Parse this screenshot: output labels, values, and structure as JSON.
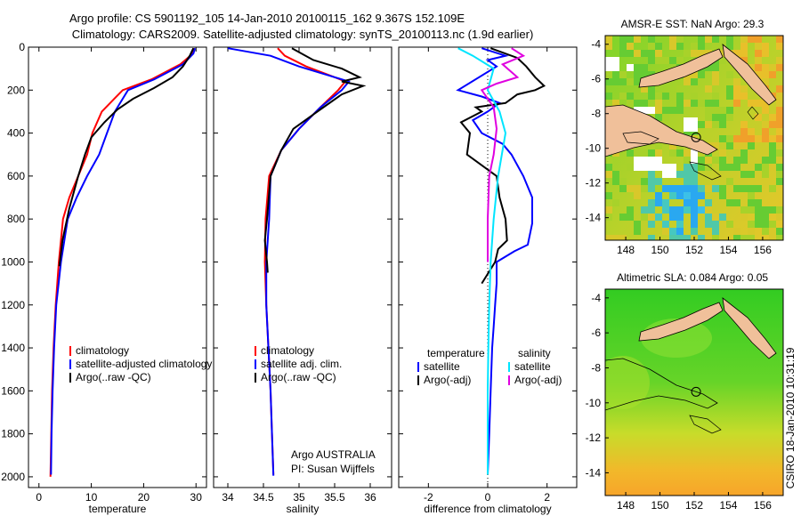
{
  "header": {
    "title_line1": "Argo profile: CS 5901192_105 14-Jan-2010 20100115_162 9.367S 152.109E",
    "title_line2": "Climatology: CARS2009. Satellite-adjusted climatology: synTS_20100113.nc (1.9d earlier)"
  },
  "credit": "CSIRO 18-Jan-2010 10:31:19",
  "colors": {
    "red": "#ff0000",
    "blue": "#0000ff",
    "black": "#000000",
    "cyan": "#00e5ff",
    "magenta": "#e000e0",
    "land": "#f0c09a"
  },
  "chart_data": [
    {
      "type": "line",
      "xlabel": "temperature",
      "ylabel": "",
      "xlim": [
        -2,
        32
      ],
      "ylim": [
        2050,
        0
      ],
      "xticks": [
        "0",
        "10",
        "20",
        "30"
      ],
      "yticks": [
        "0",
        "200",
        "400",
        "600",
        "800",
        "1000",
        "1200",
        "1400",
        "1600",
        "1800",
        "2000"
      ],
      "legend": [
        "climatology",
        "satellite-adjusted climatology",
        "Argo(..raw -QC)"
      ],
      "series": [
        {
          "name": "climatology",
          "color": "#ff0000",
          "x": [
            29.6,
            29.4,
            27,
            21.5,
            16,
            12,
            10.2,
            9.2,
            7.5,
            5.8,
            4.6,
            3.8,
            3.2,
            2.8,
            2.5,
            2.35,
            2.2
          ],
          "y": [
            5,
            30,
            80,
            150,
            200,
            300,
            400,
            500,
            600,
            700,
            800,
            1000,
            1200,
            1400,
            1600,
            1800,
            2000
          ]
        },
        {
          "name": "satellite-adjusted climatology",
          "color": "#0000ff",
          "x": [
            29.8,
            29.5,
            27.5,
            22,
            17,
            14.5,
            13,
            11.5,
            9.2,
            7.2,
            5.5,
            4.2,
            3.3,
            2.9,
            2.6,
            2.4,
            2.3
          ],
          "y": [
            5,
            30,
            80,
            150,
            200,
            300,
            400,
            500,
            600,
            700,
            800,
            1000,
            1200,
            1400,
            1600,
            1800,
            1990
          ]
        },
        {
          "name": "Argo(..raw -QC)",
          "color": "#000000",
          "x": [
            29.5,
            28.8,
            27.5,
            25.5,
            22,
            18,
            15,
            12.5,
            10,
            8.8,
            7.5,
            5.8,
            4.5,
            3.9
          ],
          "y": [
            5,
            40,
            90,
            140,
            190,
            240,
            290,
            350,
            420,
            500,
            600,
            750,
            900,
            1020
          ]
        }
      ]
    },
    {
      "type": "line",
      "xlabel": "salinity",
      "ylabel": "",
      "xlim": [
        33.8,
        36.3
      ],
      "ylim": [
        2050,
        0
      ],
      "xticks": [
        "34",
        "34.5",
        "35",
        "35.5",
        "36"
      ],
      "legend": [
        "climatology",
        "satellite adj. clim.",
        "Argo(..raw -QC)"
      ],
      "annotation": [
        "Argo AUSTRALIA",
        "PI: Susan Wijffels"
      ],
      "series": [
        {
          "name": "climatology",
          "color": "#ff0000",
          "x": [
            34.7,
            34.8,
            35.1,
            35.5,
            35.65,
            35.55,
            35.3,
            35.0,
            34.75,
            34.58,
            34.53,
            34.52,
            34.54,
            34.57,
            34.6,
            34.62,
            34.64
          ],
          "y": [
            5,
            40,
            90,
            140,
            160,
            200,
            280,
            380,
            480,
            600,
            800,
            1000,
            1200,
            1400,
            1600,
            1800,
            1990
          ]
        },
        {
          "name": "satellite adj. clim.",
          "color": "#0000ff",
          "x": [
            34.0,
            34.6,
            35.0,
            35.5,
            35.7,
            35.6,
            35.3,
            35.0,
            34.75,
            34.6,
            34.58,
            34.54,
            34.54,
            34.57,
            34.6,
            34.62,
            34.64
          ],
          "y": [
            5,
            40,
            90,
            140,
            160,
            200,
            280,
            380,
            480,
            600,
            800,
            1000,
            1200,
            1400,
            1600,
            1800,
            1995
          ]
        },
        {
          "name": "Argo(..raw -QC)",
          "color": "#000000",
          "x": [
            34.9,
            35.2,
            35.6,
            35.85,
            35.6,
            35.9,
            35.6,
            35.3,
            34.92,
            34.75,
            34.6,
            34.55,
            34.52,
            34.55,
            34.56
          ],
          "y": [
            5,
            60,
            100,
            140,
            160,
            180,
            220,
            290,
            380,
            480,
            600,
            800,
            900,
            1000,
            1050
          ]
        }
      ]
    },
    {
      "type": "line",
      "xlabel": "difference from climatology",
      "ylabel": "",
      "xlim": [
        -3,
        3
      ],
      "ylim": [
        2050,
        0
      ],
      "xticks": [
        "-2",
        "0",
        "2"
      ],
      "legend": {
        "temperature": [
          "temperature",
          "satellite",
          "Argo(-adj)"
        ],
        "salinity": [
          "salinity",
          "satellite",
          "Argo(-adj)"
        ]
      },
      "series": [
        {
          "name": "temperature satellite",
          "color": "#0000ff",
          "x": [
            -0.2,
            0.6,
            0.0,
            0.3,
            -1.0,
            -0.2,
            0.4,
            0.0,
            -0.5,
            -0.2,
            0.5,
            0.8,
            1.2,
            1.5,
            1.5,
            1.35,
            0.9,
            0.3,
            0.3,
            0.25,
            0.2,
            0.15,
            0.1,
            0.05,
            0.0
          ],
          "y": [
            5,
            40,
            60,
            90,
            200,
            230,
            260,
            300,
            340,
            400,
            450,
            500,
            600,
            700,
            820,
            920,
            950,
            1000,
            1100,
            1200,
            1300,
            1400,
            1600,
            1800,
            1990
          ]
        },
        {
          "name": "temperature Argo(-adj)",
          "color": "#000000",
          "x": [
            0.1,
            1.0,
            1.3,
            1.6,
            1.9,
            1.6,
            1.0,
            0.6,
            -0.4,
            -0.2,
            -0.9,
            -0.6,
            -0.7,
            0.3,
            0.4,
            0.6,
            0.65,
            0.35,
            0.25,
            -0.2
          ],
          "y": [
            5,
            50,
            90,
            140,
            180,
            200,
            220,
            260,
            280,
            300,
            350,
            400,
            500,
            600,
            700,
            800,
            900,
            940,
            1000,
            1100
          ]
        },
        {
          "name": "salinity satellite",
          "color": "#00e5ff",
          "x": [
            -1.0,
            -0.5,
            0.2,
            0.0,
            0.4,
            0.6,
            0.35,
            0.2,
            0.1,
            0.05,
            0.02,
            0.0,
            0.0
          ],
          "y": [
            5,
            40,
            100,
            200,
            300,
            400,
            600,
            800,
            1000,
            1200,
            1400,
            1600,
            1990
          ]
        },
        {
          "name": "salinity Argo(-adj)",
          "color": "#e000e0",
          "x": [
            0.8,
            1.2,
            0.5,
            1.0,
            0.3,
            -0.2,
            0.2,
            0.3,
            0.2,
            0.05,
            0.0,
            0.0
          ],
          "y": [
            5,
            40,
            80,
            140,
            170,
            200,
            280,
            380,
            500,
            600,
            800,
            1000
          ]
        }
      ]
    },
    {
      "type": "heatmap",
      "title": "AMSR-E SST: NaN Argo: 29.3",
      "xlim": [
        146.8,
        157.2
      ],
      "ylim": [
        -15.3,
        -3.5
      ],
      "xticks": [
        "148",
        "150",
        "152",
        "154",
        "156"
      ],
      "yticks": [
        "-4",
        "-6",
        "-8",
        "-10",
        "-12",
        "-14"
      ],
      "argo_position": {
        "lon": 152.109,
        "lat": -9.367
      }
    },
    {
      "type": "heatmap",
      "title": "Altimetric SLA: 0.084 Argo: 0.05",
      "xlim": [
        146.8,
        157.2
      ],
      "ylim": [
        -15.3,
        -3.5
      ],
      "xticks": [
        "148",
        "150",
        "152",
        "154",
        "156"
      ],
      "yticks": [
        "-4",
        "-6",
        "-8",
        "-10",
        "-12",
        "-14"
      ],
      "argo_position": {
        "lon": 152.109,
        "lat": -9.367
      }
    }
  ]
}
